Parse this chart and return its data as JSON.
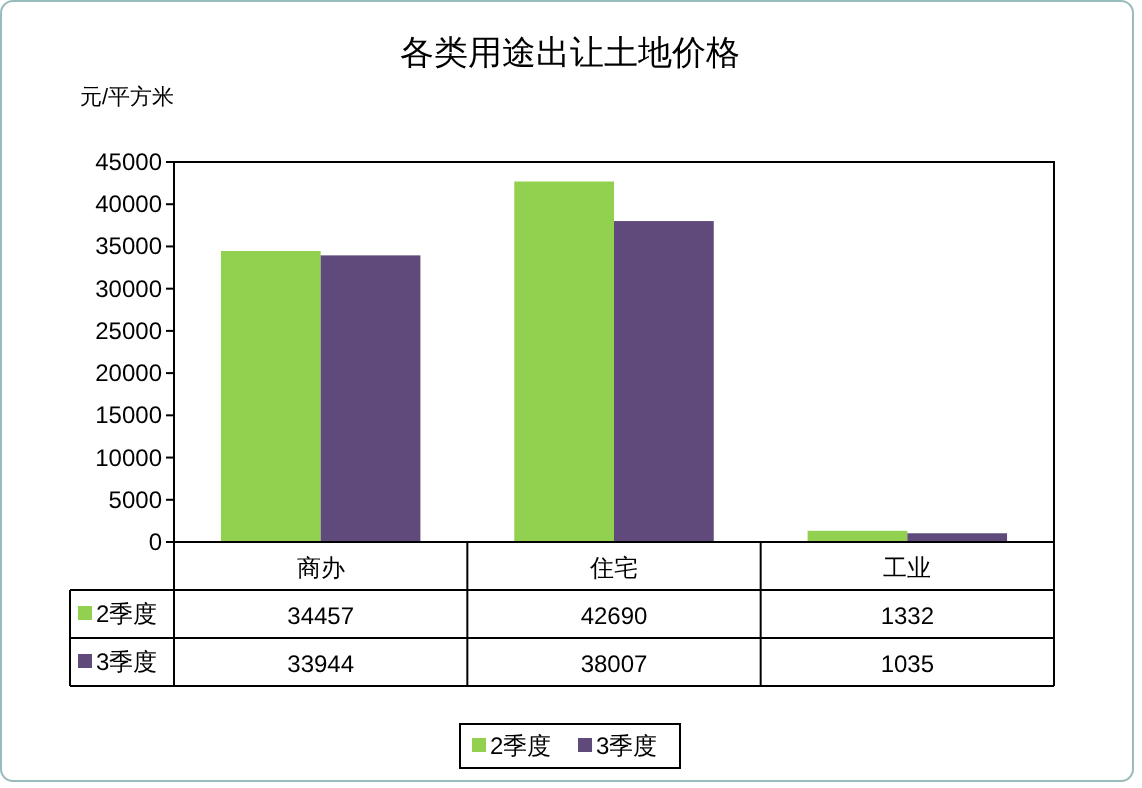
{
  "chart_data": {
    "type": "bar",
    "title": "各类用途出让土地价格",
    "ylabel": "元/平方米",
    "categories": [
      "商办",
      "住宅",
      "工业"
    ],
    "series": [
      {
        "name": "2季度",
        "color": "#92d050",
        "values": [
          34457,
          42690,
          1332
        ]
      },
      {
        "name": "3季度",
        "color": "#604a7b",
        "values": [
          33944,
          38007,
          1035
        ]
      }
    ],
    "ylim": [
      0,
      45000
    ],
    "yticks": [
      0,
      5000,
      10000,
      15000,
      20000,
      25000,
      30000,
      35000,
      40000,
      45000
    ],
    "data_labels": true,
    "legend": "bottom",
    "grid": false
  }
}
